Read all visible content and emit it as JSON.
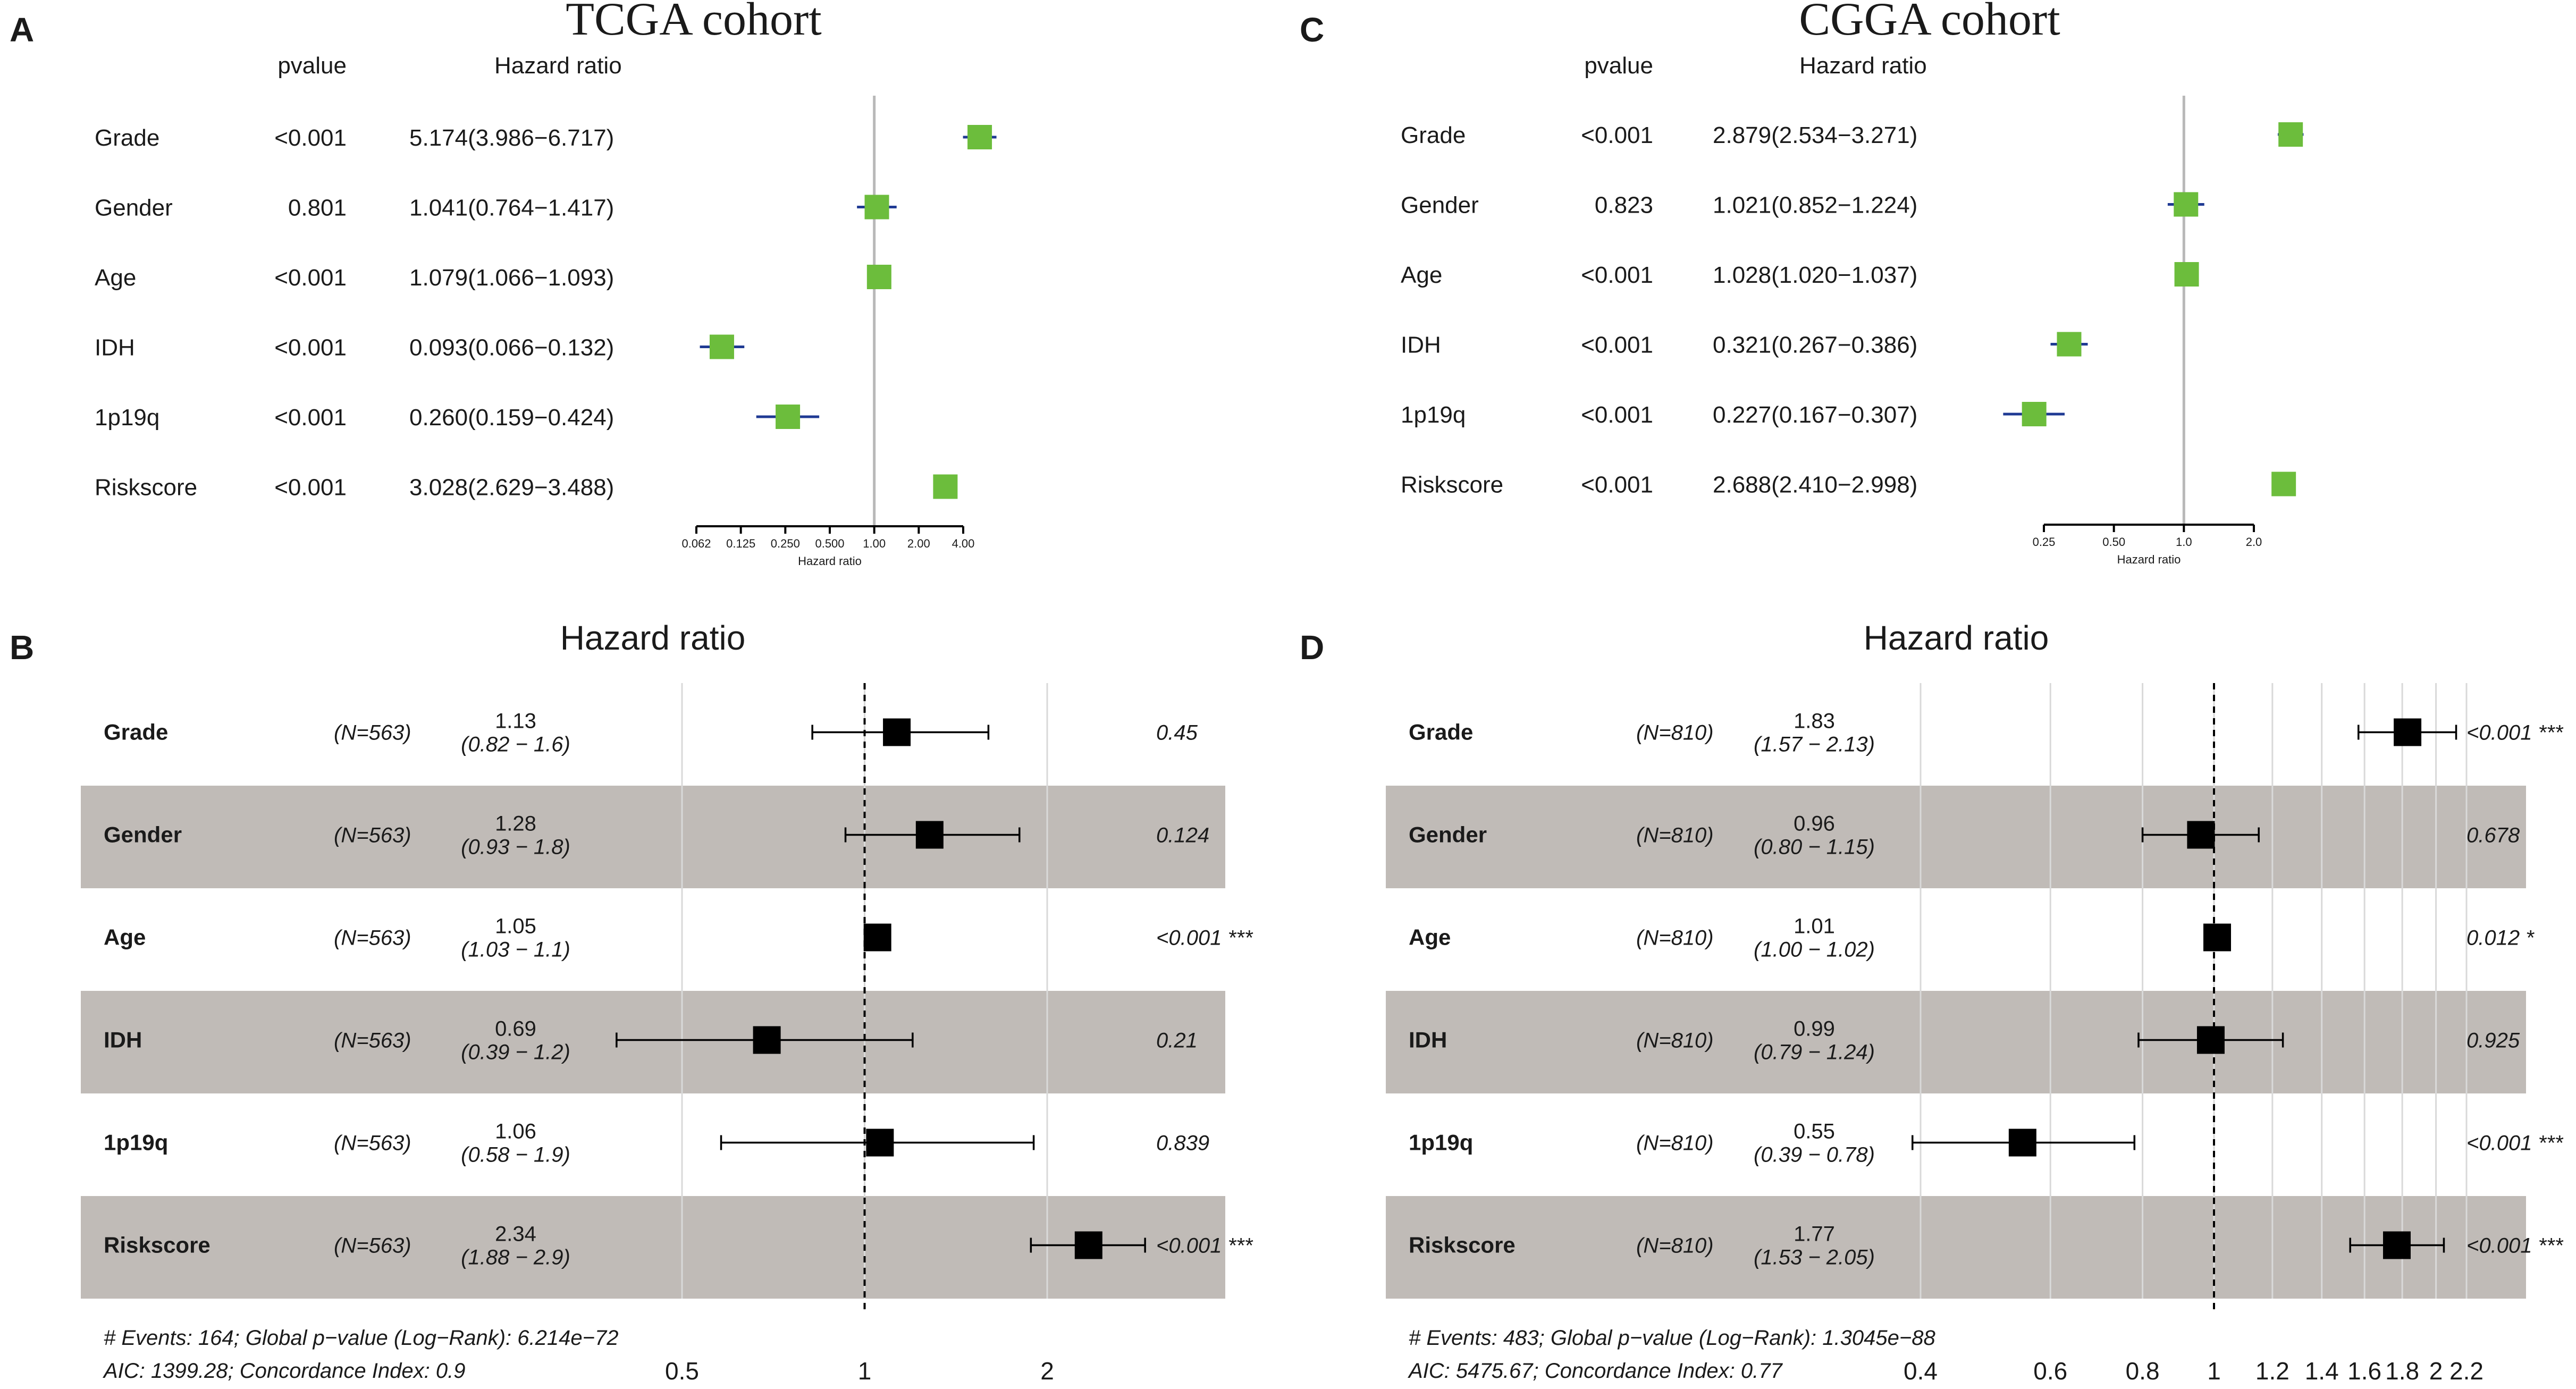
{
  "chart_data": [
    {
      "panel": "A",
      "type": "forest",
      "title": "TCGA cohort",
      "col_headers": {
        "pvalue": "pvalue",
        "hr": "Hazard ratio"
      },
      "xlabel": "Hazard ratio",
      "scale": "log",
      "xlim": [
        0.062,
        4.0
      ],
      "ref_value": 1.0,
      "ticks": [
        {
          "value": 0.0625,
          "label": "0.062"
        },
        {
          "value": 0.125,
          "label": "0.125"
        },
        {
          "value": 0.25,
          "label": "0.250"
        },
        {
          "value": 0.5,
          "label": "0.500"
        },
        {
          "value": 1.0,
          "label": "1.00"
        },
        {
          "value": 2.0,
          "label": "2.00"
        },
        {
          "value": 4.0,
          "label": "4.00"
        }
      ],
      "marker_color": "#6cbd3c",
      "line_color": "#1f3a93",
      "rows": [
        {
          "label": "Grade",
          "pvalue": "<0.001",
          "hr_text": "5.174(3.986−6.717)",
          "hr": 5.174,
          "lo": 3.986,
          "hi": 6.717
        },
        {
          "label": "Gender",
          "pvalue": "0.801",
          "hr_text": "1.041(0.764−1.417)",
          "hr": 1.041,
          "lo": 0.764,
          "hi": 1.417
        },
        {
          "label": "Age",
          "pvalue": "<0.001",
          "hr_text": "1.079(1.066−1.093)",
          "hr": 1.079,
          "lo": 1.066,
          "hi": 1.093
        },
        {
          "label": "IDH",
          "pvalue": "<0.001",
          "hr_text": "0.093(0.066−0.132)",
          "hr": 0.093,
          "lo": 0.066,
          "hi": 0.132
        },
        {
          "label": "1p19q",
          "pvalue": "<0.001",
          "hr_text": "0.260(0.159−0.424)",
          "hr": 0.26,
          "lo": 0.159,
          "hi": 0.424
        },
        {
          "label": "Riskscore",
          "pvalue": "<0.001",
          "hr_text": "3.028(2.629−3.488)",
          "hr": 3.028,
          "lo": 2.629,
          "hi": 3.488
        }
      ]
    },
    {
      "panel": "C",
      "type": "forest",
      "title": "CGGA cohort",
      "col_headers": {
        "pvalue": "pvalue",
        "hr": "Hazard ratio"
      },
      "xlabel": "Hazard ratio",
      "scale": "log",
      "xlim": [
        0.25,
        2.0
      ],
      "ref_value": 1.0,
      "ticks": [
        {
          "value": 0.25,
          "label": "0.25"
        },
        {
          "value": 0.5,
          "label": "0.50"
        },
        {
          "value": 1.0,
          "label": "1.0"
        },
        {
          "value": 2.0,
          "label": "2.0"
        }
      ],
      "marker_color": "#6cbd3c",
      "line_color": "#1f3a93",
      "rows": [
        {
          "label": "Grade",
          "pvalue": "<0.001",
          "hr_text": "2.879(2.534−3.271)",
          "hr": 2.879,
          "lo": 2.534,
          "hi": 3.271
        },
        {
          "label": "Gender",
          "pvalue": "0.823",
          "hr_text": "1.021(0.852−1.224)",
          "hr": 1.021,
          "lo": 0.852,
          "hi": 1.224
        },
        {
          "label": "Age",
          "pvalue": "<0.001",
          "hr_text": "1.028(1.020−1.037)",
          "hr": 1.028,
          "lo": 1.02,
          "hi": 1.037
        },
        {
          "label": "IDH",
          "pvalue": "<0.001",
          "hr_text": "0.321(0.267−0.386)",
          "hr": 0.321,
          "lo": 0.267,
          "hi": 0.386
        },
        {
          "label": "1p19q",
          "pvalue": "<0.001",
          "hr_text": "0.227(0.167−0.307)",
          "hr": 0.227,
          "lo": 0.167,
          "hi": 0.307
        },
        {
          "label": "Riskscore",
          "pvalue": "<0.001",
          "hr_text": "2.688(2.410−2.998)",
          "hr": 2.688,
          "lo": 2.41,
          "hi": 2.998
        }
      ]
    },
    {
      "panel": "B",
      "type": "forest",
      "title": "Hazard ratio",
      "scale": "log",
      "ref_value": 1.0,
      "ticks": [
        {
          "value": 0.5,
          "label": "0.5"
        },
        {
          "value": 1.0,
          "label": "1"
        },
        {
          "value": 2.0,
          "label": "2"
        }
      ],
      "stripe_color": "#c0bbb7",
      "rows": [
        {
          "label": "Grade",
          "n": "(N=563)",
          "hr_text": "1.13",
          "ci_text": "(0.82 − 1.6)",
          "hr": 1.13,
          "lo": 0.82,
          "hi": 1.6,
          "p": "0.45"
        },
        {
          "label": "Gender",
          "n": "(N=563)",
          "hr_text": "1.28",
          "ci_text": "(0.93 − 1.8)",
          "hr": 1.28,
          "lo": 0.93,
          "hi": 1.8,
          "p": "0.124"
        },
        {
          "label": "Age",
          "n": "(N=563)",
          "hr_text": "1.05",
          "ci_text": "(1.03 − 1.1)",
          "hr": 1.05,
          "lo": 1.03,
          "hi": 1.1,
          "p": "<0.001 ***"
        },
        {
          "label": "IDH",
          "n": "(N=563)",
          "hr_text": "0.69",
          "ci_text": "(0.39 − 1.2)",
          "hr": 0.69,
          "lo": 0.39,
          "hi": 1.2,
          "p": "0.21"
        },
        {
          "label": "1p19q",
          "n": "(N=563)",
          "hr_text": "1.06",
          "ci_text": "(0.58 − 1.9)",
          "hr": 1.06,
          "lo": 0.58,
          "hi": 1.9,
          "p": "0.839"
        },
        {
          "label": "Riskscore",
          "n": "(N=563)",
          "hr_text": "2.34",
          "ci_text": "(1.88 − 2.9)",
          "hr": 2.34,
          "lo": 1.88,
          "hi": 2.9,
          "p": "<0.001 ***"
        }
      ],
      "footer": [
        "# Events: 164; Global p−value (Log−Rank): 6.214e−72",
        "AIC: 1399.28; Concordance Index: 0.9"
      ]
    },
    {
      "panel": "D",
      "type": "forest",
      "title": "Hazard ratio",
      "scale": "log",
      "ref_value": 1.0,
      "ticks": [
        {
          "value": 0.4,
          "label": "0.4"
        },
        {
          "value": 0.6,
          "label": "0.6"
        },
        {
          "value": 0.8,
          "label": "0.8"
        },
        {
          "value": 1.0,
          "label": "1"
        },
        {
          "value": 1.2,
          "label": "1.2"
        },
        {
          "value": 1.4,
          "label": "1.4"
        },
        {
          "value": 1.6,
          "label": "1.6"
        },
        {
          "value": 1.8,
          "label": "1.8"
        },
        {
          "value": 2.0,
          "label": "2"
        },
        {
          "value": 2.2,
          "label": "2.2"
        }
      ],
      "stripe_color": "#c0bbb7",
      "rows": [
        {
          "label": "Grade",
          "n": "(N=810)",
          "hr_text": "1.83",
          "ci_text": "(1.57 − 2.13)",
          "hr": 1.83,
          "lo": 1.57,
          "hi": 2.13,
          "p": "<0.001 ***"
        },
        {
          "label": "Gender",
          "n": "(N=810)",
          "hr_text": "0.96",
          "ci_text": "(0.80 − 1.15)",
          "hr": 0.96,
          "lo": 0.8,
          "hi": 1.15,
          "p": "0.678"
        },
        {
          "label": "Age",
          "n": "(N=810)",
          "hr_text": "1.01",
          "ci_text": "(1.00 − 1.02)",
          "hr": 1.01,
          "lo": 1.0,
          "hi": 1.02,
          "p": "0.012 *"
        },
        {
          "label": "IDH",
          "n": "(N=810)",
          "hr_text": "0.99",
          "ci_text": "(0.79 − 1.24)",
          "hr": 0.99,
          "lo": 0.79,
          "hi": 1.24,
          "p": "0.925"
        },
        {
          "label": "1p19q",
          "n": "(N=810)",
          "hr_text": "0.55",
          "ci_text": "(0.39 − 0.78)",
          "hr": 0.55,
          "lo": 0.39,
          "hi": 0.78,
          "p": "<0.001 ***"
        },
        {
          "label": "Riskscore",
          "n": "(N=810)",
          "hr_text": "1.77",
          "ci_text": "(1.53 − 2.05)",
          "hr": 1.77,
          "lo": 1.53,
          "hi": 2.05,
          "p": "<0.001 ***"
        }
      ],
      "footer": [
        "# Events: 483; Global p−value (Log−Rank): 1.3045e−88",
        "AIC: 5475.67; Concordance Index: 0.77"
      ]
    }
  ]
}
